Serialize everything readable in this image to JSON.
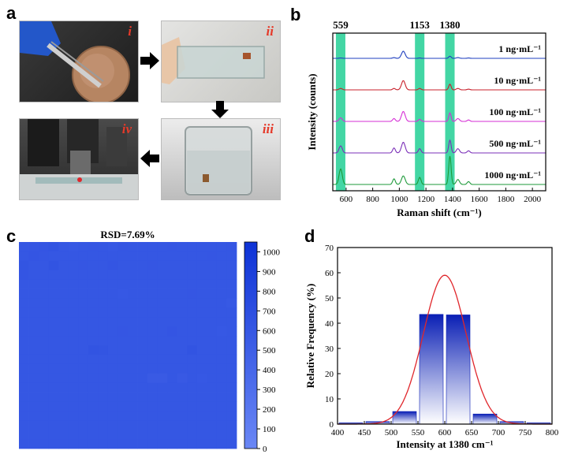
{
  "panel_a": {
    "letter": "a",
    "tags": [
      "i",
      "ii",
      "iii",
      "iv"
    ]
  },
  "panel_b": {
    "letter": "b"
  },
  "panel_c": {
    "letter": "c"
  },
  "panel_d": {
    "letter": "d"
  },
  "chart_data": [
    {
      "type": "line",
      "xlabel": "Raman shift (cm⁻¹)",
      "ylabel": "Intensity (counts)",
      "xlim": [
        500,
        2100
      ],
      "xticks": [
        600,
        800,
        1000,
        1200,
        1400,
        1600,
        1800,
        2000
      ],
      "highlight_bands": [
        {
          "label": "559",
          "center": 559
        },
        {
          "label": "1153",
          "center": 1153
        },
        {
          "label": "1380",
          "center": 1380
        }
      ],
      "series": [
        {
          "name": "1 ng·mL⁻¹",
          "color": "#1f3fbf"
        },
        {
          "name": "10 ng·mL⁻¹",
          "color": "#c8202b"
        },
        {
          "name": "100 ng·mL⁻¹",
          "color": "#d62fd6"
        },
        {
          "name": "500 ng·mL⁻¹",
          "color": "#7b2fb8"
        },
        {
          "name": "1000 ng·mL⁻¹",
          "color": "#1e9a3a"
        }
      ],
      "peaks": [
        {
          "pos": 559,
          "width": 12,
          "h": [
            0.5,
            2,
            5,
            10,
            22
          ]
        },
        {
          "pos": 960,
          "width": 10,
          "h": [
            1,
            2,
            4,
            7,
            8
          ]
        },
        {
          "pos": 1030,
          "width": 14,
          "h": [
            10,
            13,
            14,
            15,
            12
          ]
        },
        {
          "pos": 1153,
          "width": 10,
          "h": [
            0.5,
            2,
            3,
            6,
            10
          ]
        },
        {
          "pos": 1380,
          "width": 9,
          "h": [
            3,
            8,
            12,
            18,
            40
          ]
        },
        {
          "pos": 1440,
          "width": 12,
          "h": [
            1,
            2,
            4,
            6,
            7
          ]
        },
        {
          "pos": 1520,
          "width": 10,
          "h": [
            0.5,
            1,
            2,
            3,
            4
          ]
        }
      ]
    },
    {
      "type": "heatmap",
      "title": "RSD=7.69%",
      "colorbar_ticks": [
        0,
        100,
        200,
        300,
        400,
        500,
        600,
        700,
        800,
        900,
        1000
      ],
      "colorbar_range": [
        0,
        1050
      ],
      "color_low": "#6a87f5",
      "color_high": "#0e33d6",
      "grid": [
        [
          600,
          610,
          620,
          640,
          600,
          590,
          600,
          610,
          600,
          590,
          610,
          600,
          605,
          600,
          600,
          610,
          600,
          600,
          600,
          600,
          600,
          610
        ],
        [
          600,
          620,
          610,
          600,
          600,
          600,
          600,
          600,
          600,
          600,
          600,
          600,
          600,
          600,
          600,
          600,
          600,
          600,
          600,
          610,
          600,
          600
        ],
        [
          630,
          600,
          600,
          640,
          600,
          600,
          610,
          600,
          600,
          620,
          600,
          600,
          600,
          610,
          600,
          600,
          600,
          600,
          600,
          600,
          600,
          600
        ],
        [
          620,
          600,
          600,
          600,
          600,
          600,
          600,
          600,
          600,
          600,
          600,
          600,
          600,
          600,
          600,
          600,
          600,
          600,
          600,
          600,
          600,
          600
        ],
        [
          600,
          600,
          600,
          600,
          600,
          600,
          600,
          600,
          600,
          600,
          600,
          600,
          600,
          600,
          600,
          600,
          600,
          600,
          600,
          600,
          600,
          600
        ],
        [
          600,
          600,
          600,
          600,
          600,
          600,
          600,
          600,
          600,
          600,
          590,
          600,
          600,
          600,
          600,
          600,
          600,
          610,
          600,
          600,
          600,
          600
        ],
        [
          600,
          600,
          600,
          600,
          600,
          600,
          600,
          600,
          600,
          600,
          600,
          600,
          600,
          600,
          600,
          600,
          600,
          600,
          600,
          600,
          600,
          580
        ],
        [
          600,
          600,
          600,
          600,
          600,
          600,
          600,
          600,
          600,
          600,
          600,
          600,
          600,
          600,
          600,
          600,
          600,
          600,
          600,
          600,
          600,
          600
        ],
        [
          600,
          600,
          600,
          600,
          600,
          600,
          600,
          600,
          600,
          600,
          600,
          600,
          600,
          600,
          600,
          600,
          600,
          600,
          600,
          600,
          600,
          600
        ],
        [
          600,
          600,
          600,
          600,
          600,
          600,
          600,
          600,
          600,
          600,
          610,
          600,
          600,
          600,
          600,
          620,
          600,
          600,
          600,
          600,
          590,
          600
        ],
        [
          600,
          600,
          600,
          600,
          600,
          600,
          600,
          600,
          600,
          600,
          600,
          600,
          600,
          600,
          600,
          600,
          600,
          600,
          600,
          600,
          600,
          600
        ],
        [
          600,
          600,
          600,
          600,
          600,
          600,
          600,
          640,
          630,
          600,
          600,
          600,
          600,
          600,
          600,
          600,
          600,
          640,
          600,
          600,
          600,
          600
        ],
        [
          600,
          600,
          600,
          600,
          600,
          600,
          600,
          600,
          600,
          600,
          600,
          600,
          600,
          600,
          600,
          600,
          600,
          600,
          600,
          600,
          600,
          600
        ],
        [
          600,
          600,
          600,
          600,
          600,
          600,
          600,
          600,
          600,
          600,
          600,
          600,
          600,
          600,
          600,
          600,
          600,
          600,
          600,
          600,
          600,
          600
        ],
        [
          600,
          600,
          600,
          600,
          600,
          600,
          600,
          600,
          600,
          600,
          600,
          600,
          600,
          560,
          560,
          600,
          570,
          600,
          590,
          600,
          600,
          600
        ],
        [
          600,
          600,
          600,
          600,
          600,
          600,
          600,
          600,
          600,
          600,
          600,
          600,
          600,
          600,
          600,
          600,
          600,
          600,
          600,
          600,
          600,
          600
        ],
        [
          600,
          600,
          600,
          600,
          600,
          600,
          600,
          600,
          600,
          600,
          600,
          600,
          600,
          600,
          600,
          600,
          600,
          600,
          600,
          600,
          600,
          600
        ],
        [
          600,
          600,
          600,
          600,
          600,
          600,
          600,
          600,
          600,
          600,
          600,
          600,
          600,
          600,
          600,
          600,
          600,
          600,
          600,
          600,
          600,
          600
        ],
        [
          600,
          600,
          600,
          600,
          600,
          600,
          600,
          600,
          600,
          600,
          600,
          600,
          600,
          600,
          600,
          600,
          600,
          600,
          600,
          600,
          600,
          600
        ],
        [
          600,
          600,
          600,
          600,
          600,
          600,
          600,
          600,
          600,
          600,
          600,
          600,
          600,
          600,
          600,
          600,
          600,
          600,
          600,
          600,
          600,
          600
        ],
        [
          600,
          600,
          600,
          600,
          600,
          600,
          600,
          600,
          600,
          600,
          600,
          600,
          600,
          600,
          600,
          600,
          600,
          600,
          600,
          600,
          600,
          600
        ],
        [
          600,
          600,
          600,
          600,
          600,
          600,
          600,
          600,
          600,
          600,
          600,
          600,
          600,
          600,
          600,
          600,
          600,
          600,
          600,
          600,
          600,
          600
        ]
      ]
    },
    {
      "type": "bar",
      "xlabel": "Intensity at 1380 cm⁻¹",
      "ylabel": "Relative Frequency (%)",
      "xlim": [
        400,
        800
      ],
      "ylim": [
        0,
        70
      ],
      "xticks": [
        400,
        450,
        500,
        550,
        600,
        650,
        700,
        750,
        800
      ],
      "yticks": [
        0,
        10,
        20,
        30,
        40,
        50,
        60,
        70
      ],
      "bin_width": 50,
      "bins": [
        425,
        475,
        525,
        575,
        625,
        675,
        725,
        775
      ],
      "values": [
        0.5,
        1,
        5,
        43.5,
        43.3,
        4,
        1,
        0.5
      ],
      "fit": {
        "type": "gaussian",
        "mean": 600,
        "sigma": 40,
        "amplitude": 59,
        "color": "#e0262b"
      }
    }
  ]
}
